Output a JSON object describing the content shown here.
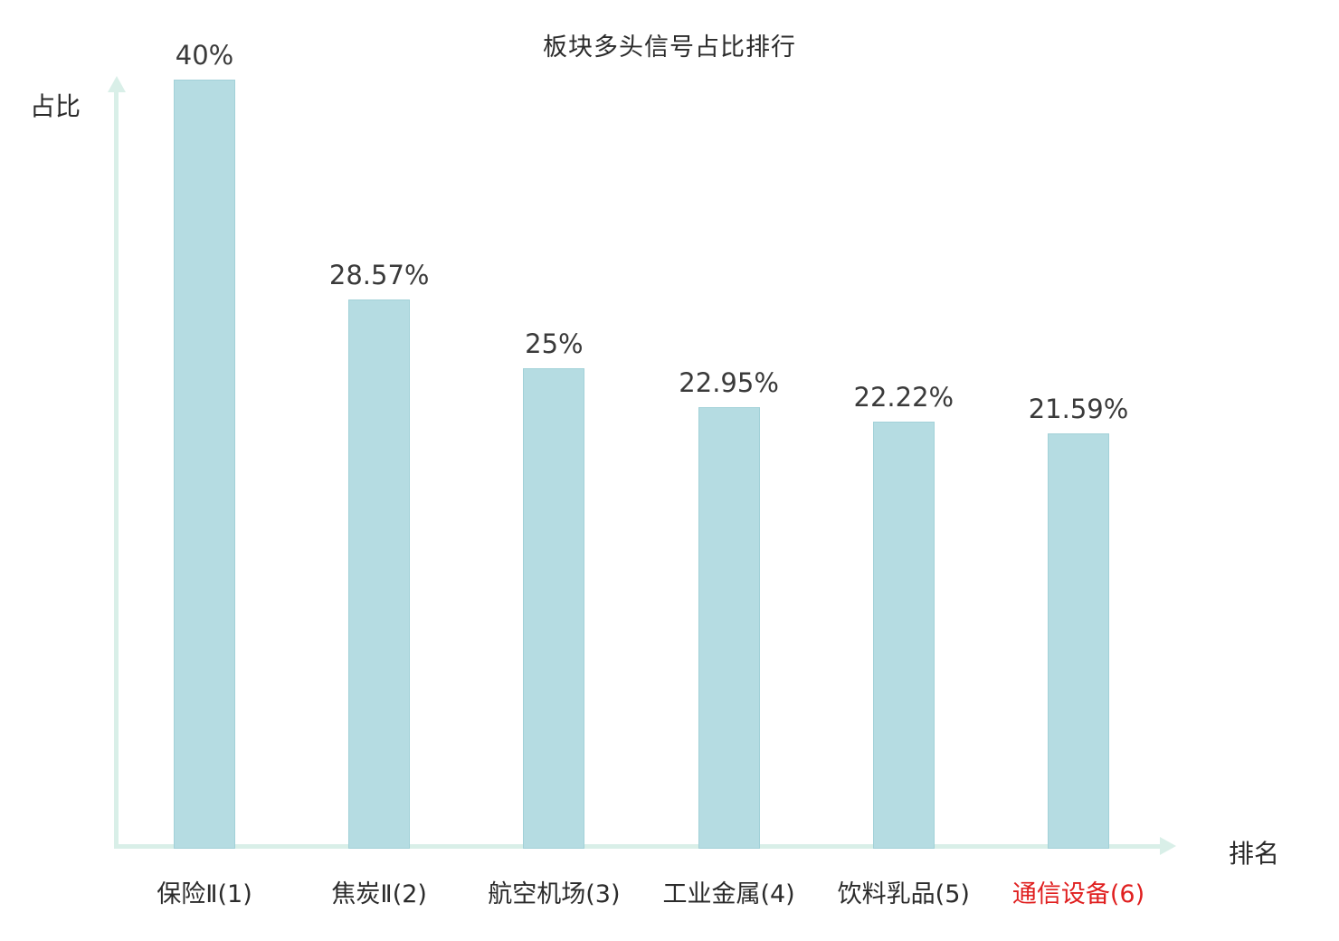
{
  "chart_data": {
    "type": "bar",
    "title": "板块多头信号占比排行",
    "xlabel": "排名",
    "ylabel": "占比",
    "categories": [
      "保险Ⅱ(1)",
      "焦炭Ⅱ(2)",
      "航空机场(3)",
      "工业金属(4)",
      "饮料乳品(5)",
      "通信设备(6)"
    ],
    "values": [
      40,
      28.57,
      25,
      22.95,
      22.22,
      21.59
    ],
    "value_labels": [
      "40%",
      "28.57%",
      "25%",
      "22.95%",
      "22.22%",
      "21.59%"
    ],
    "ylim": [
      0,
      40
    ],
    "grid": false,
    "legend": "none",
    "highlight_index": 5,
    "colors": {
      "bar_fill": "#b5dce2",
      "bar_border": "#a2d1d8",
      "axis": "#d9efe8",
      "text": "#2b2b2b",
      "highlight": "#e01f1f"
    }
  }
}
